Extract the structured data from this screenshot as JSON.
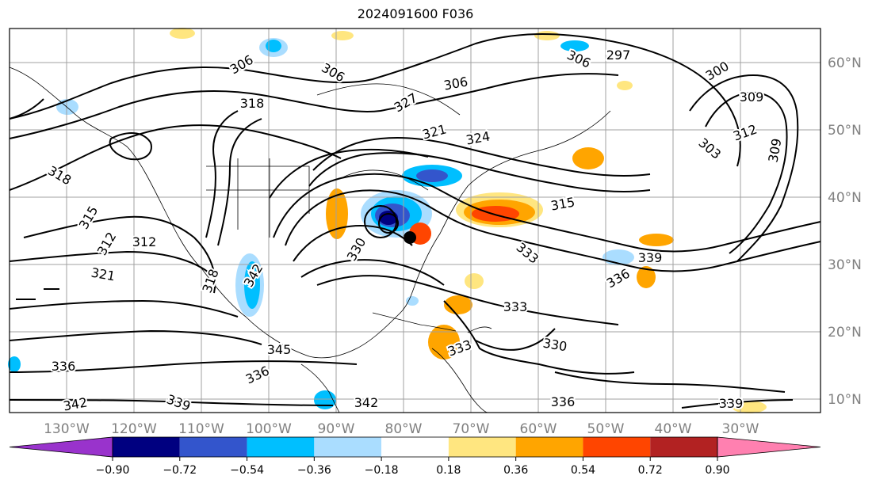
{
  "title": "2024091600 F036",
  "longitude_labels": [
    "130°W",
    "120°W",
    "110°W",
    "100°W",
    "90°W",
    "80°W",
    "70°W",
    "60°W",
    "50°W",
    "40°W",
    "30°W"
  ],
  "latitude_labels": [
    "60°N",
    "50°N",
    "40°N",
    "30°N",
    "20°N",
    "10°N"
  ],
  "colorbar": {
    "ticks": [
      "−0.90",
      "−0.72",
      "−0.54",
      "−0.36",
      "−0.18",
      "0.18",
      "0.36",
      "0.54",
      "0.72",
      "0.90"
    ],
    "colors": [
      "#9933cc",
      "#000080",
      "#3355cc",
      "#00bfff",
      "#aaddff",
      "#ffffff",
      "#ffe680",
      "#ffa500",
      "#ff4500",
      "#b22222",
      "#ff80b0"
    ]
  },
  "contour_labels": [
    "297",
    "300",
    "303",
    "306",
    "309",
    "312",
    "315",
    "318",
    "321",
    "324",
    "327",
    "330",
    "333",
    "336",
    "339",
    "342",
    "345"
  ],
  "placed_labels": [
    "306",
    "306",
    "306",
    "306",
    "297",
    "300",
    "309",
    "312",
    "303",
    "309",
    "318",
    "321",
    "324",
    "327",
    "315",
    "318",
    "315",
    "312",
    "312",
    "321",
    "330",
    "333",
    "339",
    "336",
    "333",
    "330",
    "336",
    "345",
    "342",
    "336",
    "339",
    "342",
    "336",
    "339",
    "342",
    "318",
    "333"
  ]
}
